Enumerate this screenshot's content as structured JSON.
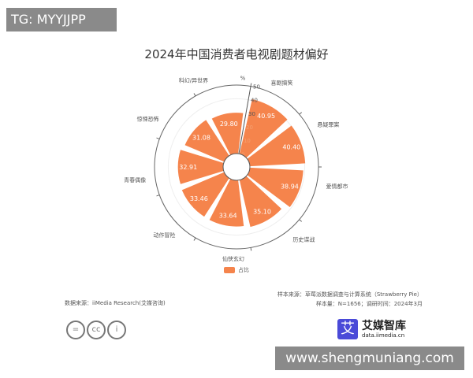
{
  "watermark_top": "TG: MYYJJPP",
  "watermark_bottom": "www.shengmuniang.com",
  "chart_data": {
    "type": "polar-bar",
    "title": "2024年中国消费者电视剧题材偏好",
    "radial_unit": "%",
    "radial_range": [
      0,
      50
    ],
    "radial_ticks": [
      0,
      10,
      20,
      30,
      40,
      50
    ],
    "categories": [
      "喜剧搞笑",
      "悬疑罪案",
      "爱情都市",
      "历史谍战",
      "仙侠玄幻",
      "动作冒险",
      "青春偶像",
      "惊悚恐怖",
      "科幻/异世界"
    ],
    "series": [
      {
        "name": "占比",
        "values": [
          40.95,
          40.4,
          38.94,
          35.1,
          33.64,
          33.46,
          32.91,
          31.08,
          29.8
        ]
      }
    ],
    "legend_position": "bottom",
    "bar_color": "#f5844c"
  },
  "footer": {
    "data_source": "数据来源：iiMedia Research(艾媒咨询)",
    "sample_source": "样本来源：草莓派数据调查与计算系统（Strawberry Pie）",
    "sample_size": "样本量：N=1656；调研时间：2024年3月",
    "logo_name": "艾媒智库",
    "logo_char": "艾",
    "logo_url": "data.iimedia.cn",
    "license_icons": [
      "nd-icon",
      "cc-icon",
      "by-icon"
    ]
  }
}
